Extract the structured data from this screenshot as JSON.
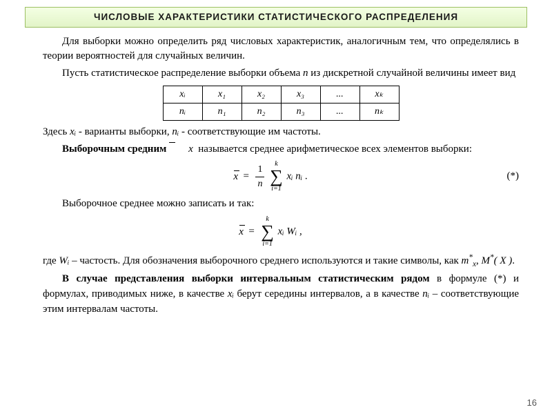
{
  "header": {
    "title": "ЧИСЛОВЫЕ   ХАРАКТЕРИСТИКИ   СТАТИСТИЧЕСКОГО   РАСПРЕДЕЛЕНИЯ"
  },
  "para1": "Для выборки можно определить ряд числовых характеристик, аналогичным тем, что определялись в теории вероятностей для случайных величин.",
  "para2_a": "Пусть статистическое распределение выборки объема ",
  "para2_n": "n",
  "para2_b": " из дискретной случайной величины имеет вид",
  "table": {
    "row1": [
      "xᵢ",
      "x₁",
      "x₂",
      "x₃",
      "...",
      "xₖ"
    ],
    "row2": [
      "nᵢ",
      "n₁",
      "n₂",
      "n₃",
      "...",
      "nₖ"
    ]
  },
  "para3_a": "Здесь ",
  "para3_xi": "xᵢ",
  "para3_b": " - варианты выборки, ",
  "para3_ni": "nᵢ",
  "para3_c": " - соответствующие им частоты.",
  "def1_a": "Выборочным средним ",
  "def1_b": " называется среднее арифметическое всех элементов выборки:",
  "formula1": {
    "num": "1",
    "den": "n",
    "sum_top": "k",
    "sum_bottom": "i=1",
    "term": "xᵢ nᵢ",
    "label": "(*)"
  },
  "para4": "Выборочное среднее можно записать и так:",
  "formula2": {
    "sum_top": "k",
    "sum_bottom": "i=1",
    "term": "xᵢ Wᵢ"
  },
  "para5_a": "где ",
  "para5_wi": "Wᵢ",
  "para5_b": " – частость. Для обозначения выборочного среднего используются и такие символы, как ",
  "para5_sym1": "m",
  "para5_sym1_sup": "*",
  "para5_sym1_sub": "x",
  "para5_sep": ", ",
  "para5_sym2": "M",
  "para5_sym2_sup": "*",
  "para5_sym2_arg": "( X )",
  "para5_end": ".",
  "para6_a": "В случае представления выборки интервальным статистическим рядом",
  "para6_b": " в формуле (*) и формулах, приводимых ниже, в качестве ",
  "para6_xi": "xᵢ",
  "para6_c": " берут середины интервалов, а в качестве ",
  "para6_ni": "nᵢ",
  "para6_d": " – соответствующие этим интервалам частоты.",
  "page_number": "16"
}
